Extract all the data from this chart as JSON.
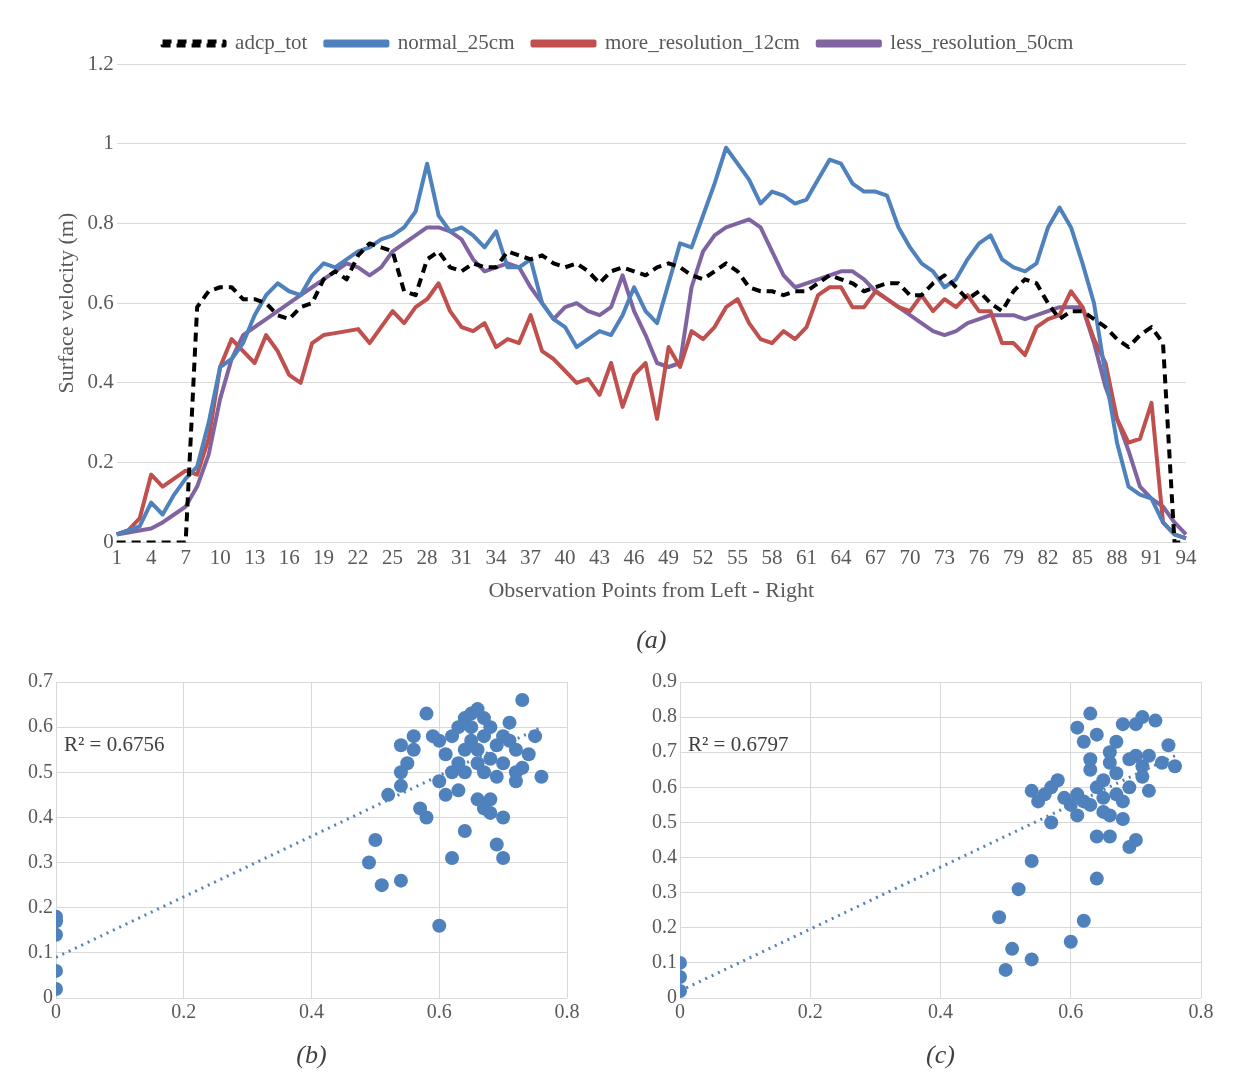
{
  "chart_data": [
    {
      "type": "line",
      "xlabel": "Observation Points from Left - Right",
      "ylabel": "Surface velocity (m)",
      "annotations": [
        "(a)"
      ],
      "categories": [
        "1",
        null,
        null,
        "4",
        null,
        null,
        "7",
        null,
        null,
        "10",
        null,
        null,
        "13",
        null,
        null,
        "16",
        null,
        null,
        "19",
        null,
        null,
        "22",
        null,
        null,
        "25",
        null,
        null,
        "28",
        null,
        null,
        "31",
        null,
        null,
        "34",
        null,
        null,
        "37",
        null,
        null,
        "40",
        null,
        null,
        "43",
        null,
        null,
        "46",
        null,
        null,
        "49",
        null,
        null,
        "52",
        null,
        null,
        "55",
        null,
        null,
        "58",
        null,
        null,
        "61",
        null,
        null,
        "64",
        null,
        null,
        "67",
        null,
        null,
        "70",
        null,
        null,
        "73",
        null,
        null,
        "76",
        null,
        null,
        "79",
        null,
        null,
        "82",
        null,
        null,
        "85",
        null,
        null,
        "88",
        null,
        null,
        "91",
        null,
        null,
        "94"
      ],
      "ylim": [
        0,
        1.2
      ],
      "yticks": [
        0,
        0.2,
        0.4,
        0.6,
        0.8,
        1,
        1.2
      ],
      "grid": "y",
      "legend": "top",
      "marker": "none",
      "series": [
        {
          "name": "adcp_tot",
          "color": "#000000",
          "line_style": "dashed",
          "values": [
            0,
            0,
            0,
            0,
            0,
            0,
            0,
            0.59,
            0.63,
            0.64,
            0.64,
            0.61,
            0.61,
            0.6,
            0.57,
            0.56,
            0.59,
            0.6,
            0.66,
            0.68,
            0.66,
            0.72,
            0.75,
            0.74,
            0.73,
            0.63,
            0.62,
            0.71,
            0.73,
            0.69,
            0.68,
            0.7,
            0.69,
            0.69,
            0.73,
            0.72,
            0.71,
            0.72,
            0.7,
            0.69,
            0.7,
            0.68,
            0.65,
            0.68,
            0.69,
            0.68,
            0.67,
            0.69,
            0.7,
            0.69,
            0.67,
            0.66,
            0.68,
            0.7,
            0.68,
            0.64,
            0.63,
            0.63,
            0.62,
            0.63,
            0.63,
            0.65,
            0.67,
            0.66,
            0.65,
            0.63,
            0.64,
            0.65,
            0.65,
            0.62,
            0.62,
            0.65,
            0.67,
            0.64,
            0.61,
            0.63,
            0.6,
            0.58,
            0.63,
            0.66,
            0.65,
            0.6,
            0.56,
            0.58,
            0.58,
            0.56,
            0.54,
            0.51,
            0.49,
            0.52,
            0.54,
            0.5,
            0,
            0
          ]
        },
        {
          "name": "normal_25cm",
          "color": "#4f81bd",
          "values": [
            0.02,
            0.03,
            0.04,
            0.1,
            0.07,
            0.12,
            0.16,
            0.19,
            0.3,
            0.44,
            0.46,
            0.5,
            0.57,
            0.62,
            0.65,
            0.63,
            0.62,
            0.67,
            0.7,
            0.69,
            0.71,
            0.73,
            0.74,
            0.76,
            0.77,
            0.79,
            0.83,
            0.95,
            0.82,
            0.78,
            0.79,
            0.77,
            0.74,
            0.78,
            0.69,
            0.69,
            0.71,
            0.6,
            0.56,
            0.54,
            0.49,
            0.51,
            0.53,
            0.52,
            0.57,
            0.64,
            0.58,
            0.55,
            0.65,
            0.75,
            0.74,
            0.82,
            0.9,
            0.99,
            0.95,
            0.91,
            0.85,
            0.88,
            0.87,
            0.85,
            0.86,
            0.91,
            0.96,
            0.95,
            0.9,
            0.88,
            0.88,
            0.87,
            0.79,
            0.74,
            0.7,
            0.68,
            0.64,
            0.66,
            0.71,
            0.75,
            0.77,
            0.71,
            0.69,
            0.68,
            0.7,
            0.79,
            0.84,
            0.79,
            0.7,
            0.6,
            0.42,
            0.25,
            0.14,
            0.12,
            0.11,
            0.05,
            0.02,
            0.01
          ]
        },
        {
          "name": "more_resolution_12cm",
          "color": "#c0504d",
          "values": [
            0.02,
            0.03,
            0.06,
            0.17,
            0.14,
            0.16,
            0.18,
            0.17,
            0.26,
            0.44,
            0.51,
            0.48,
            0.45,
            0.52,
            0.48,
            0.42,
            0.4,
            0.5,
            0.52,
            0.525,
            0.53,
            0.535,
            0.5,
            0.54,
            0.58,
            0.55,
            0.59,
            0.61,
            0.65,
            0.58,
            0.54,
            0.53,
            0.55,
            0.49,
            0.51,
            0.5,
            0.57,
            0.48,
            0.46,
            0.43,
            0.4,
            0.41,
            0.37,
            0.45,
            0.34,
            0.42,
            0.45,
            0.31,
            0.49,
            0.44,
            0.53,
            0.51,
            0.54,
            0.59,
            0.61,
            0.55,
            0.51,
            0.5,
            0.53,
            0.51,
            0.54,
            0.62,
            0.64,
            0.64,
            0.59,
            0.59,
            0.63,
            0.61,
            0.59,
            0.58,
            0.62,
            0.58,
            0.61,
            0.59,
            0.62,
            0.58,
            0.58,
            0.5,
            0.5,
            0.47,
            0.54,
            0.56,
            0.57,
            0.63,
            0.59,
            0.51,
            0.45,
            0.31,
            0.25,
            0.26,
            0.35,
            0.05,
            0.02,
            0.01
          ]
        },
        {
          "name": "less_resolution_50cm",
          "color": "#8064a2",
          "values": [
            0.02,
            0.025,
            0.03,
            0.035,
            0.05,
            0.07,
            0.09,
            0.14,
            0.22,
            0.36,
            0.46,
            0.52,
            0.54,
            0.56,
            0.58,
            0.6,
            0.62,
            0.64,
            0.66,
            0.68,
            0.7,
            0.69,
            0.67,
            0.69,
            0.73,
            0.75,
            0.77,
            0.79,
            0.79,
            0.78,
            0.76,
            0.71,
            0.68,
            0.69,
            0.7,
            0.69,
            0.64,
            0.6,
            0.56,
            0.59,
            0.6,
            0.58,
            0.57,
            0.59,
            0.67,
            0.58,
            0.52,
            0.45,
            0.44,
            0.45,
            0.64,
            0.73,
            0.77,
            0.79,
            0.8,
            0.81,
            0.79,
            0.73,
            0.67,
            0.64,
            0.65,
            0.66,
            0.67,
            0.68,
            0.68,
            0.66,
            0.63,
            0.61,
            0.59,
            0.57,
            0.55,
            0.53,
            0.52,
            0.53,
            0.55,
            0.56,
            0.57,
            0.57,
            0.57,
            0.56,
            0.57,
            0.58,
            0.59,
            0.59,
            0.59,
            0.5,
            0.39,
            0.31,
            0.23,
            0.14,
            0.11,
            0.09,
            0.05,
            0.02
          ]
        }
      ]
    },
    {
      "type": "scatter",
      "annotations": [
        "R² = 0.6756",
        "(b)"
      ],
      "xlim": [
        0,
        0.8
      ],
      "xticks": [
        0,
        0.2,
        0.4,
        0.6,
        0.8
      ],
      "ylim": [
        0,
        0.7
      ],
      "yticks": [
        0,
        0.1,
        0.2,
        0.3,
        0.4,
        0.5,
        0.6,
        0.7
      ],
      "grid": true,
      "marker": "circle",
      "series": [
        {
          "color": "#4f81bd",
          "x": [
            0,
            0,
            0,
            0,
            0,
            0.49,
            0.5,
            0.51,
            0.52,
            0.54,
            0.54,
            0.54,
            0.54,
            0.55,
            0.56,
            0.56,
            0.57,
            0.58,
            0.58,
            0.59,
            0.6,
            0.6,
            0.6,
            0.61,
            0.61,
            0.62,
            0.62,
            0.62,
            0.63,
            0.63,
            0.63,
            0.64,
            0.64,
            0.64,
            0.64,
            0.65,
            0.65,
            0.65,
            0.66,
            0.66,
            0.66,
            0.66,
            0.67,
            0.67,
            0.67,
            0.67,
            0.68,
            0.68,
            0.68,
            0.68,
            0.69,
            0.69,
            0.69,
            0.7,
            0.7,
            0.7,
            0.7,
            0.71,
            0.71,
            0.72,
            0.72,
            0.72,
            0.73,
            0.73,
            0.74,
            0.75,
            0.76
          ],
          "values": [
            0.18,
            0.17,
            0.14,
            0.06,
            0.02,
            0.3,
            0.35,
            0.25,
            0.45,
            0.26,
            0.47,
            0.56,
            0.5,
            0.52,
            0.55,
            0.58,
            0.42,
            0.4,
            0.63,
            0.58,
            0.57,
            0.16,
            0.48,
            0.45,
            0.54,
            0.31,
            0.5,
            0.58,
            0.6,
            0.52,
            0.46,
            0.62,
            0.37,
            0.55,
            0.5,
            0.63,
            0.57,
            0.6,
            0.52,
            0.44,
            0.64,
            0.55,
            0.58,
            0.42,
            0.5,
            0.62,
            0.44,
            0.53,
            0.6,
            0.41,
            0.34,
            0.49,
            0.56,
            0.4,
            0.31,
            0.58,
            0.52,
            0.57,
            0.61,
            0.5,
            0.48,
            0.55,
            0.51,
            0.66,
            0.54,
            0.58,
            0.49
          ]
        },
        {
          "type": "line",
          "marker": "none",
          "line_style": "dotted",
          "color": "#4f81bd",
          "x": [
            0,
            0.76
          ],
          "values": [
            0.09,
            0.6
          ]
        }
      ]
    },
    {
      "type": "scatter",
      "annotations": [
        "R² = 0.6797",
        "(c)"
      ],
      "xlim": [
        0,
        0.8
      ],
      "xticks": [
        0,
        0.2,
        0.4,
        0.6,
        0.8
      ],
      "ylim": [
        0,
        0.9
      ],
      "yticks": [
        0,
        0.1,
        0.2,
        0.3,
        0.4,
        0.5,
        0.6,
        0.7,
        0.8,
        0.9
      ],
      "grid": true,
      "marker": "circle",
      "series": [
        {
          "color": "#4f81bd",
          "x": [
            0,
            0,
            0,
            0.49,
            0.5,
            0.51,
            0.52,
            0.54,
            0.54,
            0.54,
            0.55,
            0.56,
            0.57,
            0.57,
            0.58,
            0.59,
            0.6,
            0.6,
            0.61,
            0.61,
            0.61,
            0.62,
            0.62,
            0.62,
            0.63,
            0.63,
            0.63,
            0.63,
            0.64,
            0.64,
            0.64,
            0.64,
            0.65,
            0.65,
            0.65,
            0.66,
            0.66,
            0.66,
            0.66,
            0.67,
            0.67,
            0.67,
            0.68,
            0.68,
            0.68,
            0.69,
            0.69,
            0.69,
            0.7,
            0.7,
            0.7,
            0.71,
            0.71,
            0.71,
            0.72,
            0.72,
            0.73,
            0.74,
            0.75,
            0.76
          ],
          "values": [
            0.1,
            0.06,
            0.02,
            0.23,
            0.08,
            0.14,
            0.31,
            0.39,
            0.11,
            0.59,
            0.56,
            0.58,
            0.5,
            0.6,
            0.62,
            0.57,
            0.16,
            0.55,
            0.58,
            0.52,
            0.77,
            0.73,
            0.22,
            0.56,
            0.81,
            0.65,
            0.68,
            0.55,
            0.75,
            0.46,
            0.34,
            0.6,
            0.62,
            0.53,
            0.57,
            0.7,
            0.67,
            0.52,
            0.46,
            0.73,
            0.58,
            0.64,
            0.78,
            0.51,
            0.56,
            0.68,
            0.43,
            0.6,
            0.45,
            0.69,
            0.78,
            0.66,
            0.8,
            0.63,
            0.59,
            0.69,
            0.79,
            0.67,
            0.72,
            0.66
          ]
        },
        {
          "type": "line",
          "marker": "none",
          "line_style": "dotted",
          "color": "#4f81bd",
          "x": [
            0,
            0.76
          ],
          "values": [
            0.02,
            0.69
          ]
        }
      ]
    }
  ]
}
